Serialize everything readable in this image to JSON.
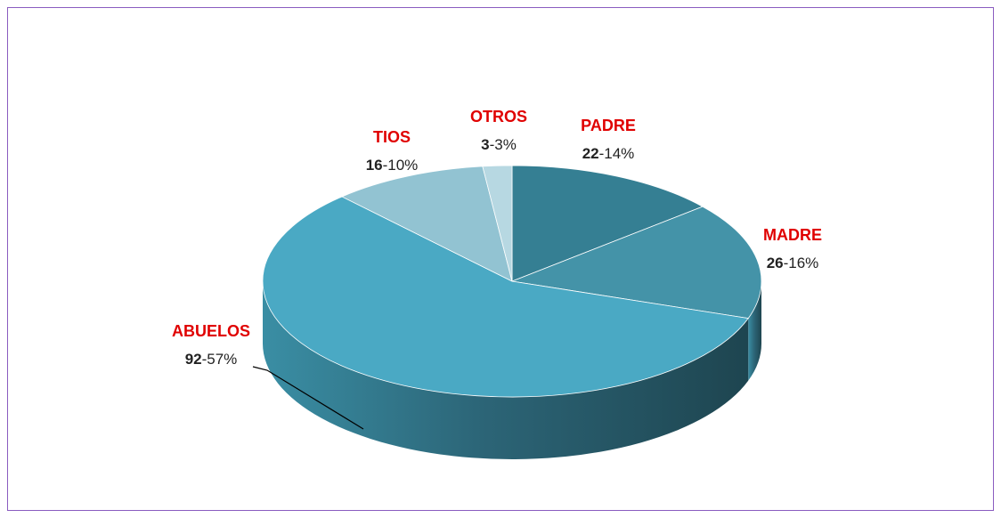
{
  "chart_data": {
    "type": "pie3d",
    "categories": [
      "PADRE",
      "MADRE",
      "ABUELOS",
      "TIOS",
      "OTROS"
    ],
    "values": [
      22,
      26,
      92,
      16,
      3
    ],
    "shares": [
      "-14%",
      "-16%",
      "-57%",
      "-10%",
      "-3%"
    ],
    "colors": [
      "#357f93",
      "#4493a8",
      "#4aa9c4",
      "#92c3d2",
      "#b7d8e2"
    ]
  }
}
